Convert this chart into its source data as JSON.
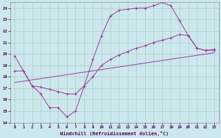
{
  "xlabel": "Windchill (Refroidissement éolien,°C)",
  "background_color": "#cce8ee",
  "grid_color": "#aaccbb",
  "line_color": "#993399",
  "xlim": [
    -0.5,
    23.5
  ],
  "ylim": [
    14,
    24.5
  ],
  "yticks": [
    14,
    15,
    16,
    17,
    18,
    19,
    20,
    21,
    22,
    23,
    24
  ],
  "xticks": [
    0,
    1,
    2,
    3,
    4,
    5,
    6,
    7,
    8,
    9,
    10,
    11,
    12,
    13,
    14,
    15,
    16,
    17,
    18,
    19,
    20,
    21,
    22,
    23
  ],
  "curve1_x": [
    0,
    1,
    2,
    3,
    4,
    5,
    6,
    7,
    8,
    9,
    10,
    11,
    12,
    13,
    14,
    15,
    16,
    17,
    18,
    19,
    20,
    21,
    22,
    23
  ],
  "curve1_y": [
    19.8,
    18.5,
    17.2,
    16.5,
    15.3,
    15.3,
    14.5,
    15.0,
    17.2,
    19.5,
    21.6,
    23.3,
    23.8,
    23.9,
    24.0,
    24.0,
    24.2,
    24.5,
    24.2,
    22.9,
    21.6,
    20.5,
    20.3,
    20.4
  ],
  "curve2_x": [
    0,
    1,
    2,
    3,
    4,
    5,
    6,
    7,
    8,
    9,
    10,
    11,
    12,
    13,
    14,
    15,
    16,
    17,
    18,
    19,
    20,
    21,
    22,
    23
  ],
  "curve2_y": [
    18.5,
    18.5,
    17.2,
    17.1,
    16.9,
    16.7,
    16.5,
    16.5,
    17.2,
    18.0,
    19.0,
    19.5,
    19.9,
    20.2,
    20.5,
    20.7,
    21.0,
    21.2,
    21.4,
    21.7,
    21.6,
    20.5,
    20.3,
    20.3
  ],
  "curve3_x": [
    0,
    23
  ],
  "curve3_y": [
    17.5,
    20.1
  ]
}
